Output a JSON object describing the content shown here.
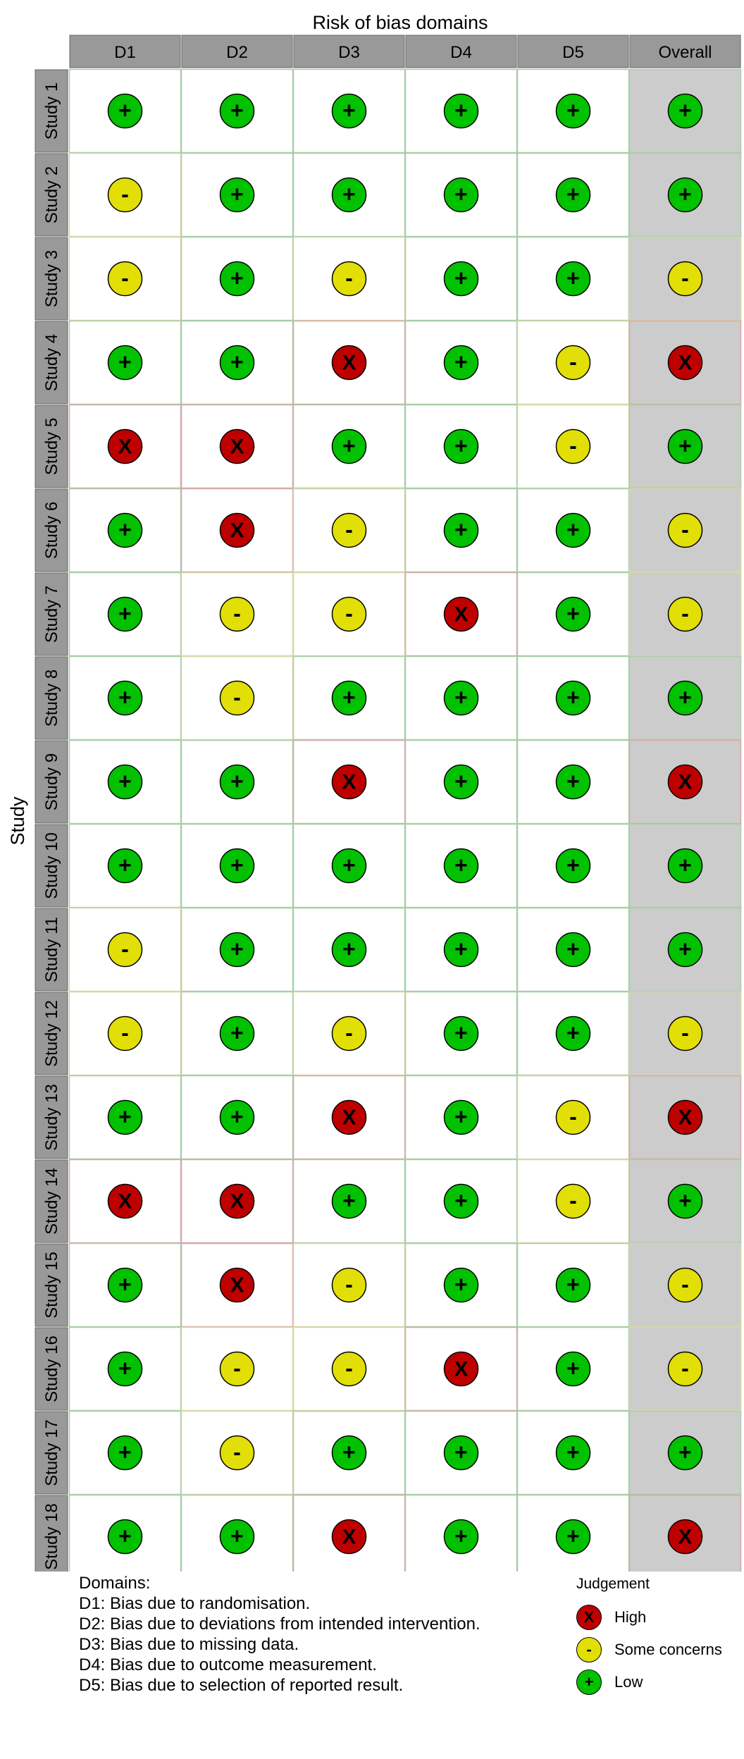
{
  "chart_data": {
    "type": "table",
    "title": "Risk of bias domains",
    "ylabel": "Study",
    "columns": [
      "D1",
      "D2",
      "D3",
      "D4",
      "D5",
      "Overall"
    ],
    "rows": [
      {
        "study": "Study 1",
        "judgements": [
          "Low",
          "Low",
          "Low",
          "Low",
          "Low",
          "Low"
        ]
      },
      {
        "study": "Study 2",
        "judgements": [
          "Some concerns",
          "Low",
          "Low",
          "Low",
          "Low",
          "Low"
        ]
      },
      {
        "study": "Study 3",
        "judgements": [
          "Some concerns",
          "Low",
          "Some concerns",
          "Low",
          "Low",
          "Some concerns"
        ]
      },
      {
        "study": "Study 4",
        "judgements": [
          "Low",
          "Low",
          "High",
          "Low",
          "Some concerns",
          "High"
        ]
      },
      {
        "study": "Study 5",
        "judgements": [
          "High",
          "High",
          "Low",
          "Low",
          "Some concerns",
          "Low"
        ]
      },
      {
        "study": "Study 6",
        "judgements": [
          "Low",
          "High",
          "Some concerns",
          "Low",
          "Low",
          "Some concerns"
        ]
      },
      {
        "study": "Study 7",
        "judgements": [
          "Low",
          "Some concerns",
          "Some concerns",
          "High",
          "Low",
          "Some concerns"
        ]
      },
      {
        "study": "Study 8",
        "judgements": [
          "Low",
          "Some concerns",
          "Low",
          "Low",
          "Low",
          "Low"
        ]
      },
      {
        "study": "Study 9",
        "judgements": [
          "Low",
          "Low",
          "High",
          "Low",
          "Low",
          "High"
        ]
      },
      {
        "study": "Study 10",
        "judgements": [
          "Low",
          "Low",
          "Low",
          "Low",
          "Low",
          "Low"
        ]
      },
      {
        "study": "Study 11",
        "judgements": [
          "Some concerns",
          "Low",
          "Low",
          "Low",
          "Low",
          "Low"
        ]
      },
      {
        "study": "Study 12",
        "judgements": [
          "Some concerns",
          "Low",
          "Some concerns",
          "Low",
          "Low",
          "Some concerns"
        ]
      },
      {
        "study": "Study 13",
        "judgements": [
          "Low",
          "Low",
          "High",
          "Low",
          "Some concerns",
          "High"
        ]
      },
      {
        "study": "Study 14",
        "judgements": [
          "High",
          "High",
          "Low",
          "Low",
          "Some concerns",
          "Low"
        ]
      },
      {
        "study": "Study 15",
        "judgements": [
          "Low",
          "High",
          "Some concerns",
          "Low",
          "Low",
          "Some concerns"
        ]
      },
      {
        "study": "Study 16",
        "judgements": [
          "Low",
          "Some concerns",
          "Some concerns",
          "High",
          "Low",
          "Some concerns"
        ]
      },
      {
        "study": "Study 17",
        "judgements": [
          "Low",
          "Some concerns",
          "Low",
          "Low",
          "Low",
          "Low"
        ]
      },
      {
        "study": "Study 18",
        "judgements": [
          "Low",
          "Low",
          "High",
          "Low",
          "Low",
          "High"
        ]
      }
    ],
    "judgement_levels": [
      {
        "label": "High",
        "symbol": "X",
        "color": "#BF0000"
      },
      {
        "label": "Some concerns",
        "symbol": "-",
        "color": "#E2DF07"
      },
      {
        "label": "Low",
        "symbol": "+",
        "color": "#02C100"
      }
    ]
  },
  "legend": {
    "domains_title": "Domains:",
    "domains": [
      "D1: Bias due to randomisation.",
      "D2: Bias due to deviations from intended intervention.",
      "D3: Bias due to missing data.",
      "D4: Bias due to outcome measurement.",
      "D5: Bias due to selection of reported result."
    ],
    "judgement_title": "Judgement"
  },
  "colors": {
    "header_fill": "#999999",
    "overall_fill": "#cccccc",
    "grid_low": "#a8cfa8",
    "grid_some": "#d8d6a8",
    "grid_high": "#d6a8a8"
  }
}
